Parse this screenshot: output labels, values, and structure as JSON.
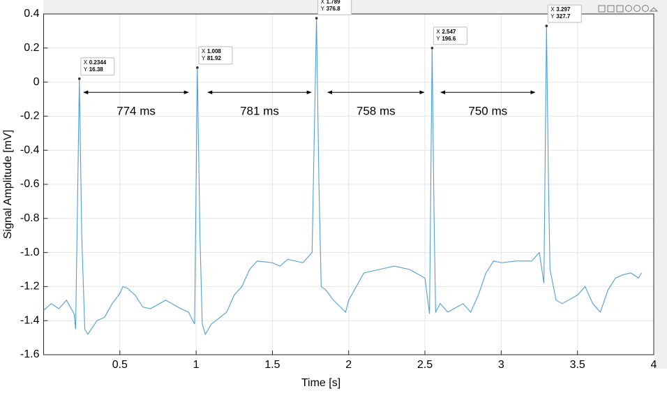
{
  "chart_data": {
    "type": "line",
    "xlabel": "Time [s]",
    "ylabel": "Signal Amplitude [mV]",
    "color": "#4d9fd6",
    "xlim": [
      0,
      4
    ],
    "ylim": [
      -1.6,
      0.4
    ],
    "xticks": [
      0.5,
      1,
      1.5,
      2,
      2.5,
      3,
      3.5,
      4
    ],
    "yticks": [
      -1.6,
      {
        "value": -1.4,
        "label": "-1.4"
      },
      {
        "value": -1.2,
        "label": "-1.2"
      },
      {
        "value": -1,
        "label": "-1.0"
      },
      -0.8,
      -0.6,
      -0.4,
      -0.2,
      0,
      0.2,
      0.4
    ],
    "grid": true,
    "x": [
      0,
      0.05,
      0.1,
      0.15,
      0.2,
      0.21,
      0.2344,
      0.25,
      0.27,
      0.29,
      0.35,
      0.4,
      0.45,
      0.5,
      0.52,
      0.55,
      0.6,
      0.65,
      0.7,
      0.8,
      0.9,
      0.95,
      0.99,
      1.008,
      1.025,
      1.04,
      1.06,
      1.1,
      1.2,
      1.25,
      1.3,
      1.35,
      1.4,
      1.5,
      1.55,
      1.6,
      1.7,
      1.76,
      1.789,
      1.805,
      1.82,
      1.85,
      1.9,
      1.98,
      2.0,
      2.1,
      2.2,
      2.3,
      2.4,
      2.5,
      2.53,
      2.547,
      2.56,
      2.57,
      2.6,
      2.65,
      2.75,
      2.8,
      2.85,
      2.9,
      2.95,
      3.0,
      3.1,
      3.2,
      3.25,
      3.28,
      3.297,
      3.31,
      3.32,
      3.36,
      3.4,
      3.5,
      3.55,
      3.6,
      3.65,
      3.7,
      3.75,
      3.8,
      3.85,
      3.9,
      3.92
    ],
    "values": [
      -1.34,
      -1.3,
      -1.33,
      -1.28,
      -1.36,
      -1.45,
      0.02,
      -0.9,
      -1.45,
      -1.48,
      -1.4,
      -1.38,
      -1.3,
      -1.24,
      -1.2,
      -1.21,
      -1.25,
      -1.32,
      -1.33,
      -1.28,
      -1.33,
      -1.35,
      -1.42,
      0.085,
      -0.9,
      -1.42,
      -1.48,
      -1.42,
      -1.35,
      -1.25,
      -1.2,
      -1.1,
      -1.05,
      -1.06,
      -1.08,
      -1.04,
      -1.06,
      -1.0,
      0.375,
      -0.6,
      -1.2,
      -1.22,
      -1.28,
      -1.35,
      -1.28,
      -1.12,
      -1.1,
      -1.08,
      -1.1,
      -1.15,
      -1.36,
      0.2,
      -0.8,
      -1.35,
      -1.3,
      -1.35,
      -1.3,
      -1.35,
      -1.25,
      -1.12,
      -1.05,
      -1.06,
      -1.05,
      -1.05,
      -1.0,
      -1.18,
      0.33,
      -0.6,
      -1.1,
      -1.28,
      -1.3,
      -1.25,
      -1.2,
      -1.3,
      -1.35,
      -1.22,
      -1.15,
      -1.13,
      -1.12,
      -1.15,
      -1.12
    ],
    "datatip_keys": [
      "X",
      "Y"
    ],
    "datatips": [
      {
        "x": 0.2344,
        "y": 0.02,
        "reading": 16.38
      },
      {
        "x": 1.008,
        "y": 0.085,
        "reading": 81.92
      },
      {
        "x": 1.789,
        "y": 0.375,
        "reading": 376.8
      },
      {
        "x": 2.547,
        "y": 0.2,
        "reading": 196.6
      },
      {
        "x": 3.297,
        "y": 0.33,
        "reading": 327.7
      }
    ],
    "intervals": [
      {
        "x1": 0.263,
        "x2": 0.949,
        "y": -0.06,
        "label": "774 ms"
      },
      {
        "x1": 1.077,
        "x2": 1.754,
        "y": -0.06,
        "label": "781 ms"
      },
      {
        "x1": 1.863,
        "x2": 2.494,
        "y": -0.06,
        "label": "758 ms"
      },
      {
        "x1": 2.604,
        "x2": 3.221,
        "y": -0.06,
        "label": "750 ms"
      }
    ]
  }
}
